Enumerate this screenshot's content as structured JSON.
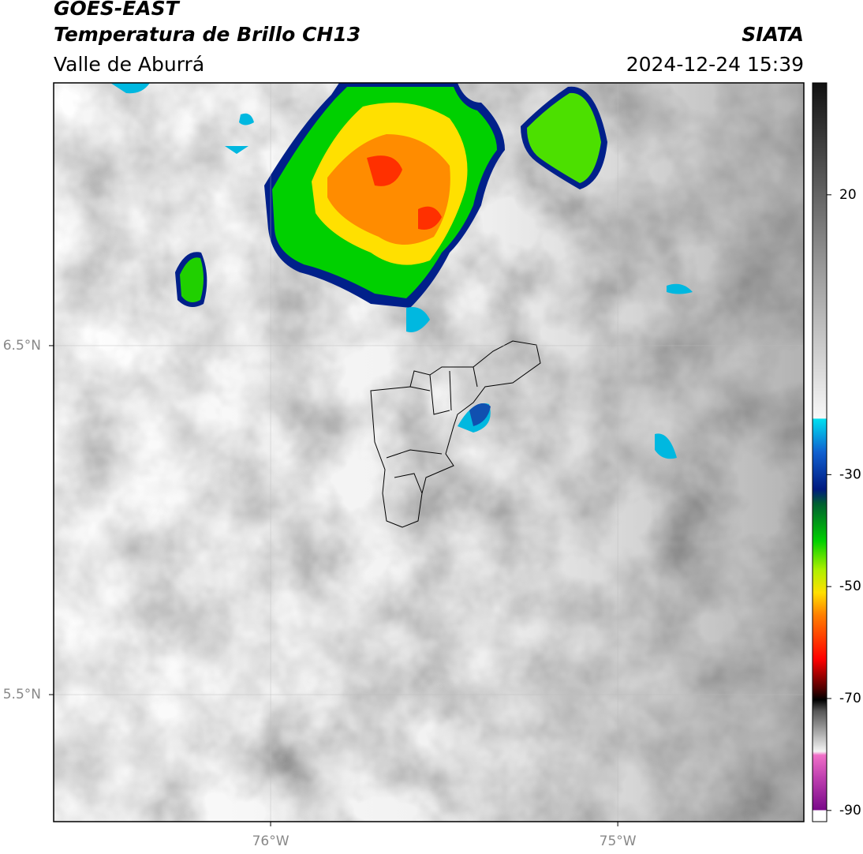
{
  "header": {
    "satellite": "GOES-EAST",
    "product": "Temperatura de Brillo CH13",
    "region": "Valle de Aburrá",
    "source": "SIATA",
    "datetime": "2024-12-24 15:39"
  },
  "map": {
    "xlim": [
      -76.625,
      -74.464
    ],
    "ylim": [
      5.136,
      7.253
    ],
    "xticks": [
      {
        "value": -76,
        "label": "76°W"
      },
      {
        "value": -75,
        "label": "75°W"
      }
    ],
    "yticks": [
      {
        "value": 6.5,
        "label": "6.5°N"
      },
      {
        "value": 5.5,
        "label": "5.5°N"
      }
    ],
    "grid": true
  },
  "colorbar": {
    "lim": [
      -92,
      40
    ],
    "ticks": [
      20,
      -30,
      -50,
      -70,
      -90
    ]
  }
}
